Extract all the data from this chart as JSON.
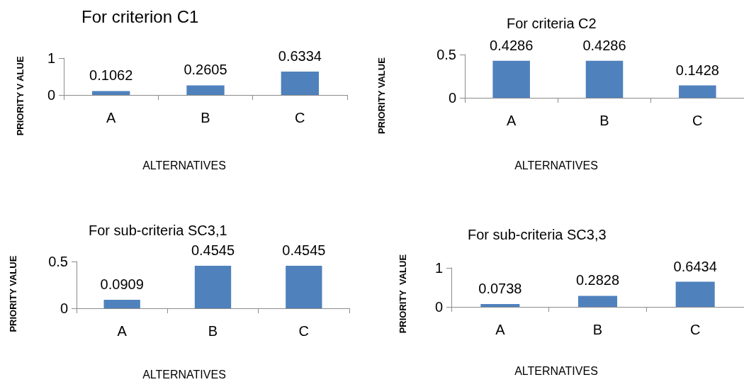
{
  "chart_data": [
    {
      "type": "bar",
      "title": "For criterion C1",
      "xlabel": "ALTERNATIVES",
      "ylabel": "PRIORITY V ALUE",
      "categories": [
        "A",
        "B",
        "C"
      ],
      "values": [
        0.1062,
        0.2605,
        0.6334
      ],
      "color": "#4f81bd",
      "ylim": [
        0,
        1
      ],
      "yticks": [
        0,
        1
      ],
      "data_labels": true
    },
    {
      "type": "bar",
      "title": "For criteria C2",
      "xlabel": "ALTERNATIVES",
      "ylabel": "PRIORITY VALUE",
      "categories": [
        "A",
        "B",
        "C"
      ],
      "values": [
        0.4286,
        0.4286,
        0.1428
      ],
      "color": "#4f81bd",
      "ylim": [
        0,
        0.5
      ],
      "yticks": [
        0,
        0.5
      ],
      "data_labels": true
    },
    {
      "type": "bar",
      "title": "For sub-criteria SC3,1",
      "xlabel": "ALTERNATIVES",
      "ylabel": "PRIORITY VALUE",
      "categories": [
        "A",
        "B",
        "C"
      ],
      "values": [
        0.0909,
        0.4545,
        0.4545
      ],
      "color": "#4f81bd",
      "ylim": [
        0,
        0.5
      ],
      "yticks": [
        0,
        0.5
      ],
      "data_labels": true
    },
    {
      "type": "bar",
      "title": "For sub-criteria SC3,3",
      "xlabel": "ALTERNATIVES",
      "ylabel": "PRIORITY  VALUE",
      "categories": [
        "A",
        "B",
        "C"
      ],
      "values": [
        0.0738,
        0.2828,
        0.6434
      ],
      "color": "#4f81bd",
      "ylim": [
        0,
        1
      ],
      "yticks": [
        0,
        1
      ],
      "data_labels": true
    }
  ]
}
